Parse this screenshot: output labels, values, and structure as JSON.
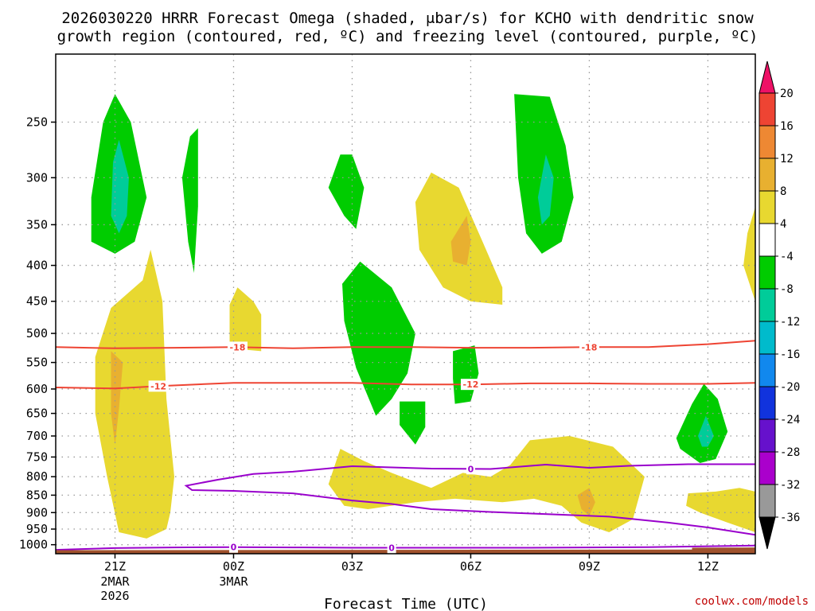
{
  "title": {
    "line1": "2026030220 HRRR Forecast Omega (shaded, μbar/s) for KCHO with dendritic snow",
    "line2": "growth region (contoured, red, ºC) and freezing level (contoured, purple, ºC)"
  },
  "xlabel": "Forecast Time (UTC)",
  "credit": "coolwx.com/models",
  "colors": {
    "dgz_contour": "#ee4433",
    "freezing_contour": "#9900cc",
    "ground": "#a0522d",
    "grid": "#999999"
  },
  "chart_data": {
    "type": "contour",
    "x_range_hours": [
      -1.5,
      16.2
    ],
    "y_axis": "pressure (mb), log scale",
    "y_range_mb": [
      1030,
      200
    ],
    "y_ticks": [
      250,
      300,
      350,
      400,
      450,
      500,
      550,
      600,
      650,
      700,
      750,
      800,
      850,
      900,
      950,
      1000
    ],
    "x_ticks": [
      {
        "hour": 0,
        "label": "21Z",
        "sub1": "2MAR",
        "sub2": "2026"
      },
      {
        "hour": 3,
        "label": "00Z",
        "sub1": "3MAR",
        "sub2": ""
      },
      {
        "hour": 6,
        "label": "03Z",
        "sub1": "",
        "sub2": ""
      },
      {
        "hour": 9,
        "label": "06Z",
        "sub1": "",
        "sub2": ""
      },
      {
        "hour": 12,
        "label": "09Z",
        "sub1": "",
        "sub2": ""
      },
      {
        "hour": 15,
        "label": "12Z",
        "sub1": "",
        "sub2": ""
      }
    ],
    "colorbar": {
      "labels": [
        "20",
        "16",
        "12",
        "8",
        "4",
        "-4",
        "-8",
        "-12",
        "-16",
        "-20",
        "-24",
        "-28",
        "-32",
        "-36"
      ],
      "colors": [
        "#ee1166",
        "#ee4433",
        "#ee8833",
        "#e8b030",
        "#e8d830",
        "#ffffff",
        "#00cc00",
        "#00cc99",
        "#00bbcc",
        "#1188ee",
        "#1133dd",
        "#6611cc",
        "#aa00cc",
        "#999999",
        "#000000"
      ]
    },
    "shaded_regions": [
      {
        "name": "green",
        "color": "#00cc00",
        "points": [
          [
            -0.6,
            320
          ],
          [
            -0.3,
            250
          ],
          [
            0.0,
            228
          ],
          [
            0.4,
            250
          ],
          [
            0.8,
            320
          ],
          [
            0.5,
            370
          ],
          [
            0.0,
            385
          ],
          [
            -0.6,
            370
          ]
        ]
      },
      {
        "name": "teal",
        "color": "#00cc99",
        "points": [
          [
            -0.1,
            340
          ],
          [
            -0.05,
            285
          ],
          [
            0.1,
            265
          ],
          [
            0.35,
            300
          ],
          [
            0.3,
            340
          ],
          [
            0.1,
            360
          ]
        ]
      },
      {
        "name": "green",
        "color": "#00cc00",
        "points": [
          [
            1.7,
            300
          ],
          [
            1.9,
            262
          ],
          [
            2.1,
            255
          ],
          [
            2.1,
            330
          ],
          [
            2.0,
            410
          ],
          [
            1.85,
            370
          ]
        ]
      },
      {
        "name": "green",
        "color": "#00cc00",
        "points": [
          [
            5.4,
            310
          ],
          [
            5.7,
            278
          ],
          [
            6.0,
            278
          ],
          [
            6.3,
            310
          ],
          [
            6.1,
            355
          ],
          [
            5.8,
            340
          ]
        ]
      },
      {
        "name": "green",
        "color": "#00cc00",
        "points": [
          [
            10.1,
            228
          ],
          [
            11.0,
            230
          ],
          [
            11.4,
            270
          ],
          [
            11.6,
            320
          ],
          [
            11.3,
            370
          ],
          [
            10.8,
            385
          ],
          [
            10.4,
            360
          ],
          [
            10.2,
            300
          ]
        ]
      },
      {
        "name": "teal",
        "color": "#00cc99",
        "points": [
          [
            10.7,
            320
          ],
          [
            10.9,
            278
          ],
          [
            11.1,
            300
          ],
          [
            11.0,
            340
          ],
          [
            10.8,
            350
          ]
        ]
      },
      {
        "name": "green",
        "color": "#00cc00",
        "points": [
          [
            5.75,
            425
          ],
          [
            6.2,
            395
          ],
          [
            7.0,
            430
          ],
          [
            7.6,
            500
          ],
          [
            7.4,
            570
          ],
          [
            7.0,
            620
          ],
          [
            6.6,
            655
          ],
          [
            6.1,
            560
          ],
          [
            5.8,
            480
          ]
        ]
      },
      {
        "name": "green",
        "color": "#00cc00",
        "points": [
          [
            8.55,
            530
          ],
          [
            9.1,
            520
          ],
          [
            9.2,
            570
          ],
          [
            9.0,
            625
          ],
          [
            8.6,
            630
          ],
          [
            8.55,
            580
          ]
        ]
      },
      {
        "name": "green",
        "color": "#00cc00",
        "points": [
          [
            7.2,
            625
          ],
          [
            7.85,
            625
          ],
          [
            7.85,
            680
          ],
          [
            7.6,
            720
          ],
          [
            7.2,
            675
          ]
        ]
      },
      {
        "name": "green",
        "color": "#00cc00",
        "points": [
          [
            14.2,
            705
          ],
          [
            14.6,
            630
          ],
          [
            14.9,
            590
          ],
          [
            15.25,
            620
          ],
          [
            15.5,
            690
          ],
          [
            15.2,
            755
          ],
          [
            14.8,
            765
          ],
          [
            14.3,
            730
          ]
        ]
      },
      {
        "name": "teal",
        "color": "#00cc99",
        "points": [
          [
            14.75,
            700
          ],
          [
            14.95,
            655
          ],
          [
            15.15,
            700
          ],
          [
            15.0,
            725
          ],
          [
            14.85,
            725
          ]
        ]
      },
      {
        "name": "yellow",
        "color": "#e8d830",
        "points": [
          [
            -0.5,
            540
          ],
          [
            -0.1,
            460
          ],
          [
            0.7,
            420
          ],
          [
            0.9,
            380
          ],
          [
            1.2,
            450
          ],
          [
            1.3,
            620
          ],
          [
            1.5,
            800
          ],
          [
            1.4,
            900
          ],
          [
            1.3,
            950
          ],
          [
            0.8,
            980
          ],
          [
            0.1,
            960
          ],
          [
            -0.2,
            800
          ],
          [
            -0.5,
            650
          ]
        ]
      },
      {
        "name": "orange",
        "color": "#e8b030",
        "points": [
          [
            -0.1,
            530
          ],
          [
            0.2,
            550
          ],
          [
            0.1,
            640
          ],
          [
            0.0,
            720
          ],
          [
            -0.1,
            650
          ]
        ]
      },
      {
        "name": "yellow",
        "color": "#e8d830",
        "points": [
          [
            2.9,
            455
          ],
          [
            3.1,
            430
          ],
          [
            3.5,
            450
          ],
          [
            3.7,
            470
          ],
          [
            3.7,
            530
          ],
          [
            2.9,
            525
          ]
        ]
      },
      {
        "name": "yellow",
        "color": "#e8d830",
        "points": [
          [
            7.6,
            325
          ],
          [
            8.0,
            295
          ],
          [
            8.7,
            310
          ],
          [
            9.3,
            370
          ],
          [
            9.8,
            430
          ],
          [
            9.8,
            455
          ],
          [
            9.0,
            450
          ],
          [
            8.3,
            430
          ],
          [
            7.7,
            380
          ]
        ]
      },
      {
        "name": "orange",
        "color": "#e8b030",
        "points": [
          [
            8.5,
            370
          ],
          [
            8.9,
            340
          ],
          [
            9.0,
            370
          ],
          [
            8.9,
            400
          ],
          [
            8.55,
            395
          ]
        ]
      },
      {
        "name": "yellow",
        "color": "#e8d830",
        "points": [
          [
            16.2,
            330
          ],
          [
            16.0,
            360
          ],
          [
            15.9,
            400
          ],
          [
            16.2,
            450
          ]
        ]
      },
      {
        "name": "yellow",
        "color": "#e8d830",
        "points": [
          [
            5.4,
            820
          ],
          [
            5.7,
            730
          ],
          [
            6.3,
            760
          ],
          [
            7.0,
            790
          ],
          [
            8.0,
            830
          ],
          [
            8.8,
            790
          ],
          [
            9.5,
            800
          ],
          [
            10.0,
            770
          ],
          [
            10.5,
            710
          ],
          [
            11.5,
            700
          ],
          [
            12.6,
            725
          ],
          [
            13.4,
            800
          ],
          [
            13.1,
            920
          ],
          [
            12.5,
            960
          ],
          [
            11.8,
            930
          ],
          [
            11.3,
            880
          ],
          [
            10.6,
            860
          ],
          [
            9.8,
            870
          ],
          [
            8.6,
            860
          ],
          [
            7.6,
            870
          ],
          [
            6.4,
            890
          ],
          [
            5.8,
            880
          ]
        ]
      },
      {
        "name": "orange",
        "color": "#e8b030",
        "points": [
          [
            11.7,
            850
          ],
          [
            12.0,
            830
          ],
          [
            12.15,
            870
          ],
          [
            12.0,
            910
          ],
          [
            11.8,
            890
          ]
        ]
      },
      {
        "name": "yellow",
        "color": "#e8d830",
        "points": [
          [
            14.5,
            845
          ],
          [
            15.2,
            840
          ],
          [
            15.8,
            830
          ],
          [
            16.2,
            840
          ],
          [
            16.2,
            960
          ],
          [
            15.5,
            930
          ],
          [
            14.8,
            900
          ],
          [
            14.45,
            880
          ]
        ]
      }
    ],
    "contours": [
      {
        "name": "-18",
        "color": "#ee4433",
        "label": "-18",
        "label_hours": [
          3.1,
          12.0
        ],
        "points": [
          [
            -1.5,
            523
          ],
          [
            0,
            525
          ],
          [
            1.5,
            524
          ],
          [
            3,
            523
          ],
          [
            4.5,
            525
          ],
          [
            6,
            523
          ],
          [
            7.5,
            523
          ],
          [
            9,
            524
          ],
          [
            10.5,
            524
          ],
          [
            12,
            523
          ],
          [
            13.5,
            523
          ],
          [
            15,
            518
          ],
          [
            16.2,
            512
          ]
        ]
      },
      {
        "name": "-12",
        "color": "#ee4433",
        "label": "-12",
        "label_hours": [
          1.1,
          9.0
        ],
        "points": [
          [
            -1.5,
            597
          ],
          [
            0,
            599
          ],
          [
            1.2,
            594
          ],
          [
            3,
            588
          ],
          [
            4.5,
            588
          ],
          [
            6,
            588
          ],
          [
            7.5,
            591
          ],
          [
            9,
            591
          ],
          [
            10.5,
            589
          ],
          [
            12,
            589
          ],
          [
            13.5,
            590
          ],
          [
            15,
            590
          ],
          [
            16.2,
            588
          ]
        ]
      },
      {
        "name": "0-upper",
        "color": "#9900cc",
        "label": "0",
        "label_hours": [
          9.0
        ],
        "points": [
          [
            16.2,
            768
          ],
          [
            14.5,
            768
          ],
          [
            13,
            772
          ],
          [
            12,
            777
          ],
          [
            10.9,
            769
          ],
          [
            9.5,
            780
          ],
          [
            8.0,
            779
          ],
          [
            6.0,
            773
          ],
          [
            4.5,
            787
          ],
          [
            3.5,
            793
          ],
          [
            2.6,
            808
          ],
          [
            1.8,
            824
          ],
          [
            1.95,
            836
          ],
          [
            3.0,
            838
          ],
          [
            4.5,
            845
          ],
          [
            6.0,
            865
          ],
          [
            7.0,
            875
          ],
          [
            8.0,
            890
          ],
          [
            9.5,
            898
          ],
          [
            11.0,
            905
          ],
          [
            12.5,
            912
          ],
          [
            14.0,
            930
          ],
          [
            15.0,
            945
          ],
          [
            16.2,
            968
          ]
        ]
      },
      {
        "name": "0-lower",
        "color": "#9900cc",
        "label": "0",
        "label_hours": [
          3.0,
          7.0
        ],
        "points": [
          [
            -1.5,
            1017
          ],
          [
            0,
            1011
          ],
          [
            1.5,
            1009
          ],
          [
            3.0,
            1008
          ],
          [
            4.5,
            1009
          ],
          [
            6.0,
            1010
          ],
          [
            7.0,
            1010
          ],
          [
            9.0,
            1010
          ],
          [
            10.5,
            1010
          ],
          [
            12.0,
            1009
          ],
          [
            13.5,
            1008
          ],
          [
            15.0,
            1005
          ],
          [
            16.2,
            1003
          ]
        ]
      }
    ],
    "ground": [
      [
        -1.5,
        1018
      ],
      [
        14.6,
        1016
      ],
      [
        14.6,
        1010
      ],
      [
        16.2,
        1009
      ],
      [
        16.2,
        1030
      ],
      [
        -1.5,
        1030
      ]
    ]
  }
}
